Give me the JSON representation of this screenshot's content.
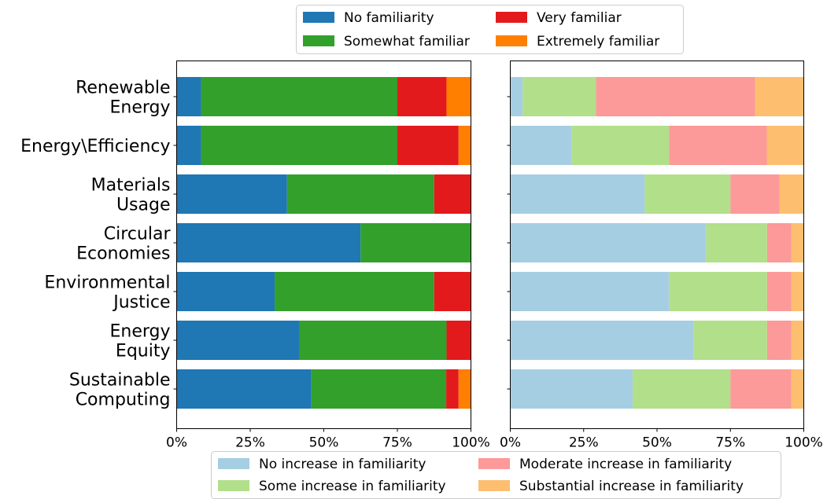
{
  "chart_data": [
    {
      "type": "bar",
      "orientation": "horizontal",
      "stacked": true,
      "normalized": true,
      "categories": [
        [
          "Renewable",
          "Energy"
        ],
        [
          "Energy\\Efficiency"
        ],
        [
          "Materials",
          "Usage"
        ],
        [
          "Circular",
          "Economies"
        ],
        [
          "Environmental",
          "Justice"
        ],
        [
          "Energy",
          "Equity"
        ],
        [
          "Sustainable",
          "Computing"
        ]
      ],
      "series": [
        {
          "name": "No familiarity",
          "color": "#1f77b4",
          "values": [
            8.3,
            8.3,
            37.5,
            62.5,
            33.3,
            41.7,
            45.8
          ]
        },
        {
          "name": "Somewhat familiar",
          "color": "#33a02c",
          "values": [
            66.7,
            66.7,
            50.0,
            37.5,
            54.2,
            50.0,
            45.8
          ]
        },
        {
          "name": "Very familiar",
          "color": "#e31a1c",
          "values": [
            16.7,
            20.8,
            12.5,
            0,
            12.5,
            8.3,
            4.2
          ]
        },
        {
          "name": "Extremely familiar",
          "color": "#ff7f00",
          "values": [
            8.3,
            4.2,
            0,
            0,
            0,
            0,
            4.2
          ]
        }
      ],
      "xlim": [
        0,
        100
      ],
      "xticks": [
        "0%",
        "25%",
        "50%",
        "75%",
        "100%"
      ],
      "legend_position": "top"
    },
    {
      "type": "bar",
      "orientation": "horizontal",
      "stacked": true,
      "normalized": true,
      "categories": [
        [
          "Renewable",
          "Energy"
        ],
        [
          "Energy\\Efficiency"
        ],
        [
          "Materials",
          "Usage"
        ],
        [
          "Circular",
          "Economies"
        ],
        [
          "Environmental",
          "Justice"
        ],
        [
          "Energy",
          "Equity"
        ],
        [
          "Sustainable",
          "Computing"
        ]
      ],
      "series": [
        {
          "name": "No increase in familiarity",
          "color": "#a6cee3",
          "values": [
            4.2,
            20.8,
            45.8,
            66.7,
            54.2,
            62.5,
            41.7
          ]
        },
        {
          "name": "Some increase in familiarity",
          "color": "#b2df8a",
          "values": [
            25.0,
            33.3,
            29.2,
            20.8,
            33.3,
            25.0,
            33.3
          ]
        },
        {
          "name": "Moderate increase in familiarity",
          "color": "#fb9a99",
          "values": [
            54.2,
            33.3,
            16.7,
            8.3,
            8.3,
            8.3,
            20.8
          ]
        },
        {
          "name": "Substantial increase in familiarity",
          "color": "#fdbf6f",
          "values": [
            16.7,
            12.5,
            8.3,
            4.2,
            4.2,
            4.2,
            4.2
          ]
        }
      ],
      "xlim": [
        0,
        100
      ],
      "xticks": [
        "0%",
        "25%",
        "50%",
        "75%",
        "100%"
      ],
      "legend_position": "bottom"
    }
  ]
}
